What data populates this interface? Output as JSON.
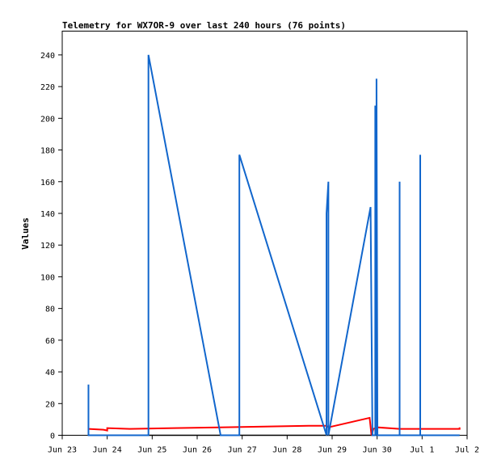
{
  "chart_data": {
    "type": "line",
    "title": "Telemetry for WX7OR-9 over last 240 hours (76 points)",
    "xlabel": "",
    "ylabel": "Values",
    "grid": false,
    "legend": "none",
    "xlim": [
      "Jun 23",
      "Jul 2"
    ],
    "ylim": [
      0,
      255
    ],
    "x_ticks": [
      "Jun 23",
      "Jun 24",
      "Jun 25",
      "Jun 26",
      "Jun 27",
      "Jun 28",
      "Jun 29",
      "Jun 30",
      "Jul 1",
      "Jul 2"
    ],
    "y_ticks": [
      0,
      20,
      40,
      60,
      80,
      100,
      120,
      140,
      160,
      180,
      200,
      220,
      240
    ],
    "series": [
      {
        "color": "#1166cc",
        "points": [
          [
            "Jun 23 14:00",
            0
          ],
          [
            "Jun 23 14:00",
            32
          ],
          [
            "Jun 23 14:00",
            0
          ],
          [
            "Jun 24 22:00",
            0
          ],
          [
            "Jun 24 22:00",
            240
          ],
          [
            "Jun 26 12:30",
            0
          ],
          [
            "Jun 26 22:30",
            0
          ],
          [
            "Jun 26 22:30",
            177
          ],
          [
            "Jun 28 21:00",
            0
          ],
          [
            "Jun 28 21:00",
            140
          ],
          [
            "Jun 28 22:00",
            160
          ],
          [
            "Jun 28 22:00",
            0
          ],
          [
            "Jun 29 20:30",
            144
          ],
          [
            "Jun 29 21:30",
            0
          ],
          [
            "Jun 29 23:00",
            0
          ],
          [
            "Jun 29 23:00",
            208
          ],
          [
            "Jun 29 23:40",
            0
          ],
          [
            "Jun 29 23:40",
            225
          ],
          [
            "Jun 30 00:10",
            0
          ],
          [
            "Jun 30 12:00",
            0
          ],
          [
            "Jun 30 12:00",
            160
          ],
          [
            "Jun 30 12:00",
            0
          ],
          [
            "Jun 30 23:00",
            0
          ],
          [
            "Jun 30 23:00",
            177
          ],
          [
            "Jun 30 23:00",
            0
          ],
          [
            "Jul 1 20:00",
            0
          ]
        ]
      },
      {
        "color": "#ff0000",
        "points": [
          [
            "Jun 23 14:00",
            4
          ],
          [
            "Jun 23 22:00",
            3.5
          ],
          [
            "Jun 24 00:00",
            3
          ],
          [
            "Jun 24 00:00",
            4.5
          ],
          [
            "Jun 24 12:00",
            4
          ],
          [
            "Jun 25 12:00",
            4.5
          ],
          [
            "Jun 26 12:00",
            5
          ],
          [
            "Jun 27 12:00",
            5.5
          ],
          [
            "Jun 28 12:00",
            6
          ],
          [
            "Jun 28 21:00",
            6
          ],
          [
            "Jun 28 22:00",
            5
          ],
          [
            "Jun 29 20:00",
            11
          ],
          [
            "Jun 29 21:00",
            0
          ],
          [
            "Jun 29 22:00",
            4
          ],
          [
            "Jun 30 00:00",
            5
          ],
          [
            "Jun 30 12:00",
            4
          ],
          [
            "Jul 1 20:00",
            4
          ],
          [
            "Jul 1 20:00",
            5
          ]
        ]
      },
      {
        "color": "#000000",
        "points": [
          [
            "Jun 23 14:00",
            0
          ],
          [
            "Jul 1 20:00",
            0
          ]
        ]
      }
    ]
  }
}
